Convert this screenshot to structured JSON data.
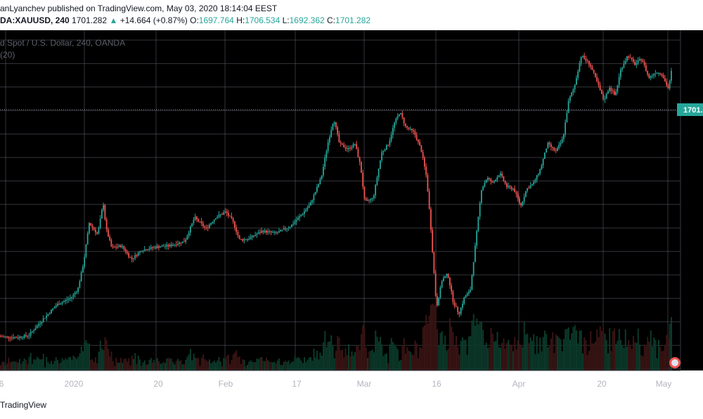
{
  "header": {
    "line1": "anLyanchev published on TradingView.com, May 03, 2020 18:14:04 EEST",
    "symbol": "DA:XAUUSD, 240",
    "last": "1701.282",
    "change_arrow": "▲",
    "change": "+14.664 (+0.87%)",
    "o_label": "O:",
    "o_value": "1697.764",
    "h_label": "H:",
    "h_value": "1706.534",
    "l_label": "L:",
    "l_value": "1692.362",
    "c_label": "C:",
    "c_value": "1701.282"
  },
  "chart": {
    "legend_title": "d Spot / U.S. Dollar, 240, OANDA",
    "legend_sub": "(20)",
    "price_tag": "1701.",
    "colors": {
      "background": "#000000",
      "grid": "#5d606b",
      "up": "#26a69a",
      "down": "#ef5350",
      "volume_up": "#0b3a2a",
      "volume_down": "#3a1414",
      "axis_text": "#b2b5be",
      "legend_text": "#5d606b"
    }
  },
  "footer": {
    "brand": "TradingView"
  },
  "chart_data": {
    "type": "candlestick",
    "symbol": "XAUUSD",
    "interval": "240",
    "x_tick_labels": [
      "6",
      "2020",
      "20",
      "Feb",
      "17",
      "Mar",
      "16",
      "Apr",
      "20",
      "May"
    ],
    "y_range": [
      1430,
      1730
    ],
    "last_price": 1701.282,
    "price_path": [
      [
        0,
        1460
      ],
      [
        22,
        1459
      ],
      [
        40,
        1461
      ],
      [
        60,
        1475
      ],
      [
        80,
        1488
      ],
      [
        100,
        1494
      ],
      [
        110,
        1502
      ],
      [
        118,
        1525
      ],
      [
        126,
        1560
      ],
      [
        138,
        1550
      ],
      [
        146,
        1578
      ],
      [
        150,
        1555
      ],
      [
        158,
        1538
      ],
      [
        172,
        1540
      ],
      [
        186,
        1528
      ],
      [
        200,
        1536
      ],
      [
        222,
        1539
      ],
      [
        240,
        1540
      ],
      [
        262,
        1544
      ],
      [
        276,
        1565
      ],
      [
        292,
        1555
      ],
      [
        306,
        1565
      ],
      [
        320,
        1570
      ],
      [
        330,
        1562
      ],
      [
        340,
        1545
      ],
      [
        352,
        1546
      ],
      [
        372,
        1553
      ],
      [
        392,
        1551
      ],
      [
        412,
        1557
      ],
      [
        426,
        1566
      ],
      [
        440,
        1576
      ],
      [
        456,
        1600
      ],
      [
        466,
        1632
      ],
      [
        474,
        1652
      ],
      [
        482,
        1630
      ],
      [
        494,
        1625
      ],
      [
        504,
        1630
      ],
      [
        512,
        1610
      ],
      [
        518,
        1578
      ],
      [
        530,
        1582
      ],
      [
        542,
        1622
      ],
      [
        552,
        1630
      ],
      [
        560,
        1648
      ],
      [
        568,
        1658
      ],
      [
        576,
        1645
      ],
      [
        588,
        1640
      ],
      [
        598,
        1625
      ],
      [
        606,
        1600
      ],
      [
        612,
        1555
      ],
      [
        620,
        1485
      ],
      [
        628,
        1510
      ],
      [
        636,
        1515
      ],
      [
        644,
        1490
      ],
      [
        652,
        1480
      ],
      [
        660,
        1495
      ],
      [
        668,
        1500
      ],
      [
        676,
        1545
      ],
      [
        684,
        1590
      ],
      [
        692,
        1600
      ],
      [
        700,
        1595
      ],
      [
        710,
        1604
      ],
      [
        720,
        1592
      ],
      [
        730,
        1590
      ],
      [
        740,
        1575
      ],
      [
        748,
        1590
      ],
      [
        758,
        1595
      ],
      [
        768,
        1608
      ],
      [
        778,
        1630
      ],
      [
        790,
        1623
      ],
      [
        800,
        1635
      ],
      [
        808,
        1668
      ],
      [
        816,
        1680
      ],
      [
        826,
        1708
      ],
      [
        838,
        1700
      ],
      [
        848,
        1685
      ],
      [
        858,
        1668
      ],
      [
        866,
        1680
      ],
      [
        874,
        1672
      ],
      [
        882,
        1695
      ],
      [
        892,
        1708
      ],
      [
        902,
        1700
      ],
      [
        912,
        1705
      ],
      [
        922,
        1688
      ],
      [
        932,
        1693
      ],
      [
        940,
        1692
      ],
      [
        950,
        1678
      ],
      [
        956,
        1701.282
      ]
    ]
  }
}
